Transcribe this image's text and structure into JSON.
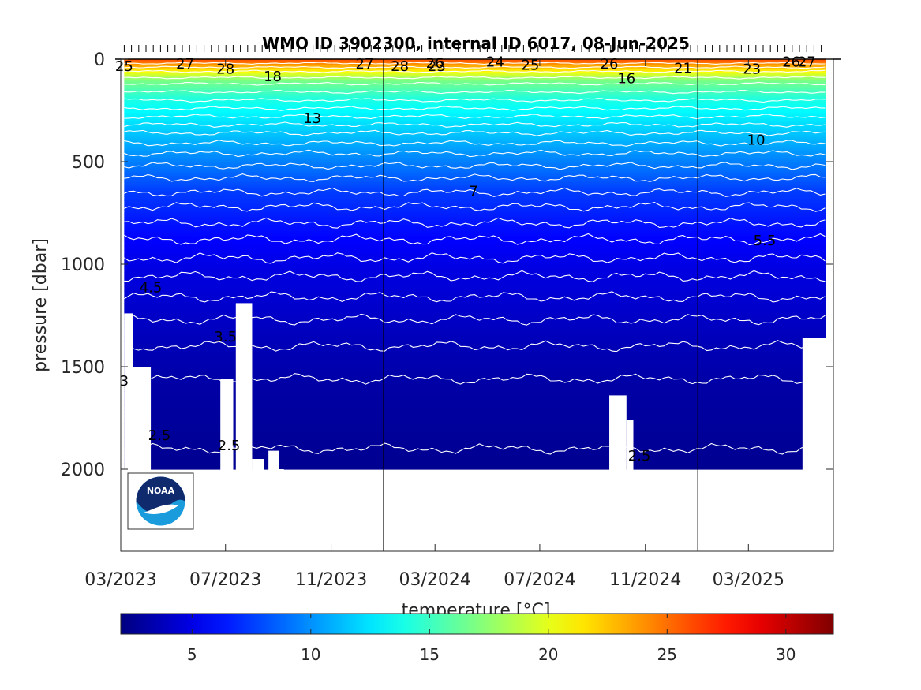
{
  "chart_data": {
    "type": "heatmap",
    "title": "WMO ID 3902300, internal ID 6017, 08-Jun-2025",
    "ylabel": "pressure [dbar]",
    "colorbar_label": "temperature [°C]",
    "x_ticks": [
      "03/2023",
      "07/2023",
      "11/2023",
      "03/2024",
      "07/2024",
      "11/2024",
      "03/2025"
    ],
    "x_range": [
      "2023-03-01",
      "2025-06-08"
    ],
    "y_ticks": [
      0,
      500,
      1000,
      1500,
      2000
    ],
    "y_range": [
      0,
      2400
    ],
    "y_reversed": true,
    "colorbar_ticks": [
      5,
      10,
      15,
      20,
      25,
      30
    ],
    "colorbar_range": [
      2,
      32
    ],
    "colormap": "jet",
    "year_boundaries": [
      "2024-01-01",
      "2025-01-01"
    ],
    "profile_depth_max": 2000,
    "temperature_profile_typical": [
      {
        "pressure": 0,
        "temperature": 26
      },
      {
        "pressure": 50,
        "temperature": 22
      },
      {
        "pressure": 100,
        "temperature": 17
      },
      {
        "pressure": 200,
        "temperature": 14
      },
      {
        "pressure": 300,
        "temperature": 12.5
      },
      {
        "pressure": 400,
        "temperature": 11
      },
      {
        "pressure": 500,
        "temperature": 9.5
      },
      {
        "pressure": 650,
        "temperature": 7.5
      },
      {
        "pressure": 800,
        "temperature": 6.3
      },
      {
        "pressure": 1000,
        "temperature": 5
      },
      {
        "pressure": 1200,
        "temperature": 4.3
      },
      {
        "pressure": 1400,
        "temperature": 3.6
      },
      {
        "pressure": 1600,
        "temperature": 3.1
      },
      {
        "pressure": 1800,
        "temperature": 2.8
      },
      {
        "pressure": 2000,
        "temperature": 2.5
      }
    ],
    "contour_labels": [
      {
        "text": "25",
        "date": "2023-03-05",
        "pressure": 30
      },
      {
        "text": "27",
        "date": "2023-05-15",
        "pressure": 20
      },
      {
        "text": "28",
        "date": "2023-07-01",
        "pressure": 45
      },
      {
        "text": "18",
        "date": "2023-08-25",
        "pressure": 80
      },
      {
        "text": "27",
        "date": "2023-12-10",
        "pressure": 20
      },
      {
        "text": "28",
        "date": "2024-01-20",
        "pressure": 30
      },
      {
        "text": "26",
        "date": "2024-03-01",
        "pressure": 15
      },
      {
        "text": "23",
        "date": "2024-03-03",
        "pressure": 30
      },
      {
        "text": "24",
        "date": "2024-05-10",
        "pressure": 10
      },
      {
        "text": "25",
        "date": "2024-06-20",
        "pressure": 25
      },
      {
        "text": "26",
        "date": "2024-09-20",
        "pressure": 20
      },
      {
        "text": "16",
        "date": "2024-10-10",
        "pressure": 90
      },
      {
        "text": "21",
        "date": "2024-12-15",
        "pressure": 40
      },
      {
        "text": "23",
        "date": "2025-03-05",
        "pressure": 45
      },
      {
        "text": "26",
        "date": "2025-04-20",
        "pressure": 10
      },
      {
        "text": "27",
        "date": "2025-05-08",
        "pressure": 10
      },
      {
        "text": "13",
        "date": "2023-10-10",
        "pressure": 285
      },
      {
        "text": "10",
        "date": "2025-03-10",
        "pressure": 390
      },
      {
        "text": "7",
        "date": "2024-04-15",
        "pressure": 640
      },
      {
        "text": "5.5",
        "date": "2025-03-20",
        "pressure": 880
      },
      {
        "text": "4.5",
        "date": "2023-04-05",
        "pressure": 1110
      },
      {
        "text": "3.5",
        "date": "2023-07-01",
        "pressure": 1350
      },
      {
        "text": "3",
        "date": "2023-03-05",
        "pressure": 1565
      },
      {
        "text": "2.5",
        "date": "2023-04-15",
        "pressure": 1830
      },
      {
        "text": "2.5",
        "date": "2023-07-05",
        "pressure": 1880
      },
      {
        "text": "2.5",
        "date": "2024-10-25",
        "pressure": 1930
      }
    ]
  },
  "logo": {
    "text": "NOAA"
  },
  "colors": {
    "contour": "#ffffff",
    "axis": "#262626",
    "background": "#ffffff"
  }
}
